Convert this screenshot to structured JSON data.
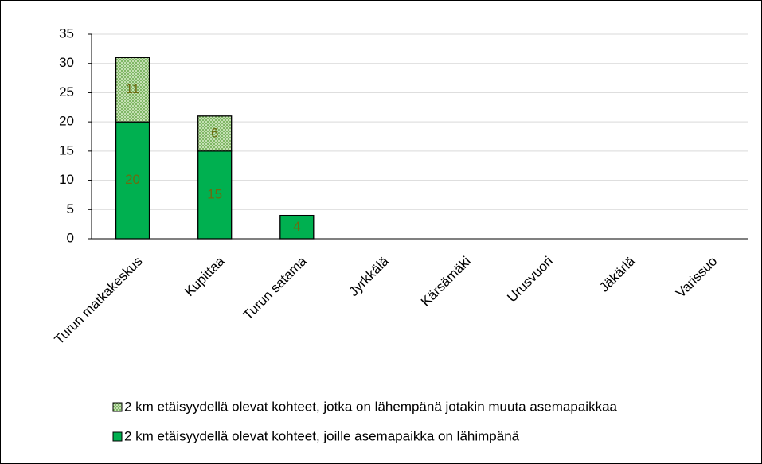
{
  "chart_data": {
    "type": "stacked_bar",
    "categories": [
      "Turun matkakeskus",
      "Kupittaa",
      "Turun satama",
      "Jyrkkälä",
      "Kärsämäki",
      "Urusvuori",
      "Jäkärlä",
      "Varissuo"
    ],
    "series": [
      {
        "name": "2 km etäisyydellä olevat kohteet, joille asemapaikka on lähimpänä",
        "color": "#00b050",
        "values": [
          20,
          15,
          4,
          0,
          0,
          0,
          0,
          0
        ]
      },
      {
        "name": "2 km etäisyydellä olevat kohteet, jotka on lähempänä jotakin muuta asemapaikkaa",
        "color": "#c5e0b4",
        "pattern": "dotted",
        "values": [
          11,
          6,
          0,
          0,
          0,
          0,
          0,
          0
        ]
      }
    ],
    "ylim": [
      0,
      35
    ],
    "yticks": [
      0,
      5,
      10,
      15,
      20,
      25,
      30,
      35
    ],
    "grid": true,
    "legend": "bottom"
  }
}
